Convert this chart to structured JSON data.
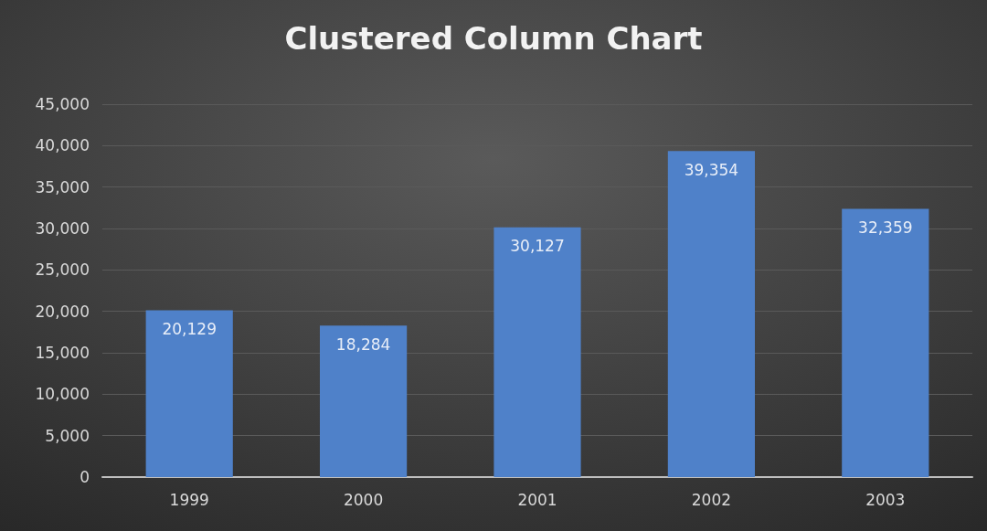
{
  "chart_data": {
    "type": "bar",
    "title": "Clustered Column Chart",
    "categories": [
      "1999",
      "2000",
      "2001",
      "2002",
      "2003"
    ],
    "values": [
      20129,
      18284,
      30127,
      39354,
      32359
    ],
    "value_labels": [
      "20,129",
      "18,284",
      "30,127",
      "39,354",
      "32,359"
    ],
    "color": "#4f81c9",
    "ylim": [
      0,
      45000
    ],
    "yticks": [
      0,
      {
        "value": 5000,
        "label": "5,000"
      },
      {
        "value": 10000,
        "label": "10,000"
      },
      {
        "value": 15000,
        "label": "15,000"
      },
      {
        "value": 20000,
        "label": "20,000"
      },
      {
        "value": 25000,
        "label": "25,000"
      },
      {
        "value": 30000,
        "label": "30,000"
      },
      {
        "value": 35000,
        "label": "35,000"
      },
      {
        "value": 40000,
        "label": "40,000"
      },
      {
        "value": 45000,
        "label": "45,000"
      }
    ],
    "grid": "y"
  }
}
